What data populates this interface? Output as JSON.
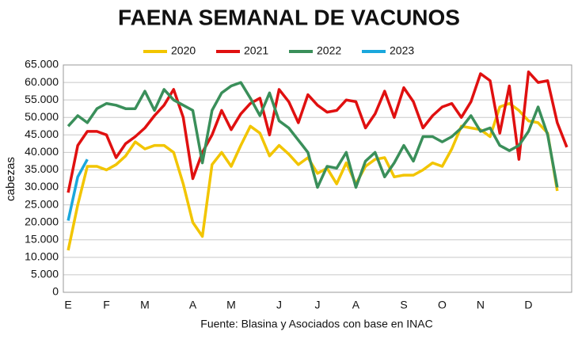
{
  "chart_data": {
    "type": "line",
    "title": "FAENA SEMANAL DE VACUNOS",
    "y_label": "cabezas",
    "source": "Fuente: Blasina y Asociados con base en INAC",
    "categories": [
      "E",
      null,
      null,
      null,
      "F",
      null,
      null,
      null,
      "M",
      null,
      null,
      null,
      null,
      "A",
      null,
      null,
      null,
      "M",
      null,
      null,
      null,
      null,
      "J",
      null,
      null,
      null,
      "J",
      null,
      null,
      null,
      "A",
      null,
      null,
      null,
      null,
      "S",
      null,
      null,
      null,
      "O",
      null,
      null,
      null,
      "N",
      null,
      null,
      null,
      null,
      "D",
      null,
      null,
      null,
      null
    ],
    "series": [
      {
        "name": "2020",
        "color": "#f2c500",
        "values": [
          12000,
          25000,
          36000,
          36000,
          35000,
          36500,
          39000,
          43000,
          41000,
          42000,
          42000,
          40000,
          31000,
          20000,
          16000,
          36500,
          40000,
          36000,
          42000,
          47500,
          45500,
          39000,
          42000,
          39500,
          36500,
          38500,
          34000,
          35500,
          31000,
          37000,
          31000,
          36000,
          38000,
          38500,
          33000,
          33500,
          33500,
          35000,
          37000,
          36000,
          41000,
          47500,
          47000,
          46500,
          44500,
          53000,
          54000,
          52000,
          49000,
          48500,
          45500,
          29000,
          null
        ]
      },
      {
        "name": "2021",
        "color": "#e01010",
        "values": [
          28500,
          42000,
          46000,
          46000,
          45000,
          38500,
          42500,
          44500,
          47000,
          50500,
          53500,
          58000,
          50000,
          32500,
          40000,
          45000,
          52000,
          46500,
          51000,
          54000,
          55500,
          45000,
          58000,
          54500,
          48500,
          56500,
          53500,
          51500,
          52000,
          55000,
          54500,
          47000,
          51000,
          57500,
          50000,
          58500,
          54500,
          47000,
          50500,
          53000,
          54000,
          50000,
          54500,
          62500,
          60500,
          45500,
          59000,
          38000,
          63000,
          60000,
          60500,
          48500,
          41500
        ]
      },
      {
        "name": "2022",
        "color": "#3a8f5a",
        "values": [
          47500,
          50500,
          48500,
          52500,
          54000,
          53500,
          52500,
          52500,
          57500,
          52000,
          58000,
          55000,
          53500,
          52000,
          37000,
          52000,
          57000,
          59000,
          60000,
          55500,
          50500,
          57000,
          49000,
          47000,
          43500,
          40000,
          30000,
          36000,
          35500,
          40000,
          30000,
          37500,
          40000,
          33000,
          37000,
          42000,
          37500,
          44500,
          44500,
          43000,
          44500,
          47000,
          50500,
          46000,
          47000,
          42000,
          40500,
          42000,
          46000,
          53000,
          45000,
          30000,
          null
        ]
      },
      {
        "name": "2023",
        "color": "#1aa7dc",
        "values": [
          20500,
          33000,
          38000,
          null,
          null,
          null,
          null,
          null,
          null,
          null,
          null,
          null,
          null,
          null,
          null,
          null,
          null,
          null,
          null,
          null,
          null,
          null,
          null,
          null,
          null,
          null,
          null,
          null,
          null,
          null,
          null,
          null,
          null,
          null,
          null,
          null,
          null,
          null,
          null,
          null,
          null,
          null,
          null,
          null,
          null,
          null,
          null,
          null,
          null,
          null,
          null,
          null,
          null
        ]
      }
    ],
    "ylim": [
      0,
      65000
    ],
    "yticks": [
      0,
      {
        "value": 5000,
        "label": "5.000"
      },
      {
        "value": 10000,
        "label": "10.000"
      },
      {
        "value": 15000,
        "label": "15.000"
      },
      {
        "value": 20000,
        "label": "20.000"
      },
      {
        "value": 25000,
        "label": "25.000"
      },
      {
        "value": 30000,
        "label": "30.000"
      },
      {
        "value": 35000,
        "label": "35.000"
      },
      {
        "value": 40000,
        "label": "40.000"
      },
      {
        "value": 45000,
        "label": "45.000"
      },
      {
        "value": 50000,
        "label": "50.000"
      },
      {
        "value": 55000,
        "label": "55.000"
      },
      {
        "value": 60000,
        "label": "60.000"
      },
      {
        "value": 65000,
        "label": "65.000"
      }
    ],
    "grid": true
  }
}
